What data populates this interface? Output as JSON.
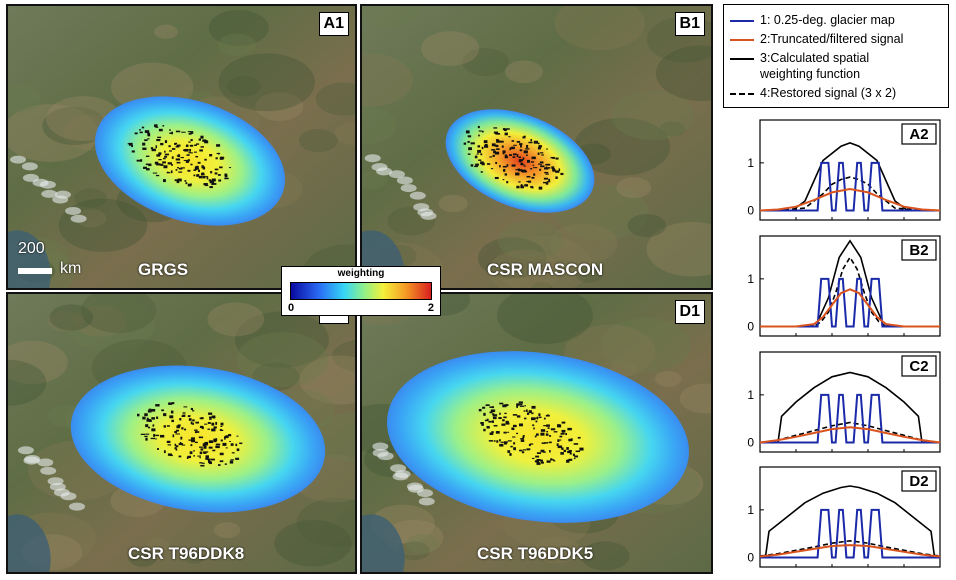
{
  "maps": [
    {
      "label": "A1",
      "title": "GRGS"
    },
    {
      "label": "B1",
      "title": "CSR MASCON"
    },
    {
      "label": "C1",
      "title": "CSR T96DDK8"
    },
    {
      "label": "D1",
      "title": "CSR T96DDK5"
    }
  ],
  "scale_bar": {
    "value": "200",
    "unit": "km"
  },
  "colorbar": {
    "title": "weighting",
    "min": "0",
    "max": "2",
    "colors": [
      "#0a0aa0",
      "#2a6bf5",
      "#36d6f5",
      "#8ef08a",
      "#f5f03a",
      "#f59a25",
      "#d81f1f"
    ]
  },
  "legend": {
    "items": [
      {
        "text": "1: 0.25-deg. glacier map",
        "color": "#1a2aa8",
        "style": "solid"
      },
      {
        "text": "2:Truncated/filtered signal",
        "color": "#d9531e",
        "style": "solid"
      },
      {
        "text": "3:Calculated spatial",
        "color": "#000000",
        "style": "solid"
      },
      {
        "text": "weighting function",
        "color": "#000000",
        "style": "none"
      },
      {
        "text": "4:Restored signal (3 x 2)",
        "color": "#000000",
        "style": "dashed"
      }
    ]
  },
  "chart_data": [
    {
      "type": "line",
      "label": "A2",
      "yticks": [
        "0",
        "1"
      ],
      "ylim": [
        -0.2,
        1.9
      ],
      "series": [
        {
          "name": "1: 0.25-deg. glacier map",
          "x": [
            0,
            0.32,
            0.34,
            0.38,
            0.4,
            0.42,
            0.44,
            0.46,
            0.48,
            0.52,
            0.54,
            0.56,
            0.58,
            0.6,
            0.62,
            0.66,
            0.68,
            1
          ],
          "y": [
            0,
            0,
            1,
            1,
            0,
            0,
            1,
            1,
            0,
            0,
            1,
            1,
            0,
            0,
            1,
            1,
            0,
            0
          ]
        },
        {
          "name": "2:Truncated/filtered signal",
          "x": [
            0,
            0.1,
            0.2,
            0.3,
            0.4,
            0.5,
            0.6,
            0.7,
            0.8,
            0.9,
            1
          ],
          "y": [
            0,
            0.02,
            0.08,
            0.22,
            0.38,
            0.45,
            0.38,
            0.22,
            0.08,
            0.02,
            0
          ]
        },
        {
          "name": "3:Calculated spatial weighting function",
          "x": [
            0,
            0.18,
            0.25,
            0.35,
            0.45,
            0.5,
            0.55,
            0.65,
            0.75,
            0.82,
            1
          ],
          "y": [
            0,
            0,
            0.2,
            1.05,
            1.35,
            1.42,
            1.35,
            1.05,
            0.2,
            0,
            0
          ]
        },
        {
          "name": "4:Restored signal (3 x 2)",
          "x": [
            0,
            0.15,
            0.25,
            0.3,
            0.35,
            0.4,
            0.45,
            0.5,
            0.55,
            0.6,
            0.65,
            0.7,
            0.75,
            0.85,
            1
          ],
          "y": [
            0,
            0.02,
            0.05,
            0.2,
            0.35,
            0.55,
            0.65,
            0.7,
            0.65,
            0.55,
            0.35,
            0.2,
            0.05,
            0.02,
            0
          ]
        }
      ]
    },
    {
      "type": "line",
      "label": "B2",
      "yticks": [
        "0",
        "1"
      ],
      "ylim": [
        -0.2,
        1.9
      ],
      "series": [
        {
          "name": "1: 0.25-deg. glacier map",
          "x": [
            0,
            0.32,
            0.34,
            0.38,
            0.4,
            0.42,
            0.44,
            0.46,
            0.48,
            0.52,
            0.54,
            0.56,
            0.58,
            0.6,
            0.62,
            0.66,
            0.68,
            1
          ],
          "y": [
            0,
            0,
            1,
            1,
            0,
            0,
            1,
            1,
            0,
            0,
            1,
            1,
            0,
            0,
            1,
            1,
            0,
            0
          ]
        },
        {
          "name": "2:Truncated/filtered signal",
          "x": [
            0,
            0.2,
            0.3,
            0.35,
            0.4,
            0.45,
            0.5,
            0.55,
            0.6,
            0.65,
            0.7,
            0.8,
            1
          ],
          "y": [
            0,
            0,
            0.05,
            0.2,
            0.45,
            0.7,
            0.78,
            0.7,
            0.45,
            0.2,
            0.05,
            0,
            0
          ]
        },
        {
          "name": "3:Calculated spatial weighting function",
          "x": [
            0,
            0.28,
            0.32,
            0.38,
            0.44,
            0.5,
            0.56,
            0.62,
            0.68,
            0.72,
            1
          ],
          "y": [
            0,
            0,
            0.1,
            0.6,
            1.45,
            1.8,
            1.45,
            0.6,
            0.1,
            0,
            0
          ]
        },
        {
          "name": "4:Restored signal (3 x 2)",
          "x": [
            0,
            0.3,
            0.34,
            0.38,
            0.42,
            0.46,
            0.5,
            0.54,
            0.58,
            0.62,
            0.66,
            0.7,
            1
          ],
          "y": [
            0,
            0,
            0.1,
            0.3,
            0.7,
            1.2,
            1.45,
            1.2,
            0.7,
            0.3,
            0.1,
            0,
            0
          ]
        }
      ]
    },
    {
      "type": "line",
      "label": "C2",
      "yticks": [
        "0",
        "1"
      ],
      "ylim": [
        -0.2,
        1.9
      ],
      "series": [
        {
          "name": "1: 0.25-deg. glacier map",
          "x": [
            0,
            0.32,
            0.34,
            0.38,
            0.4,
            0.42,
            0.44,
            0.46,
            0.48,
            0.52,
            0.54,
            0.56,
            0.58,
            0.6,
            0.62,
            0.66,
            0.68,
            1
          ],
          "y": [
            0,
            0,
            1,
            1,
            0,
            0,
            1,
            1,
            0,
            0,
            1,
            1,
            0,
            0,
            1,
            1,
            0,
            0
          ]
        },
        {
          "name": "2:Truncated/filtered signal",
          "x": [
            0,
            0.1,
            0.2,
            0.3,
            0.4,
            0.5,
            0.6,
            0.7,
            0.8,
            0.9,
            1
          ],
          "y": [
            0,
            0.05,
            0.12,
            0.2,
            0.28,
            0.32,
            0.28,
            0.2,
            0.12,
            0.05,
            0
          ]
        },
        {
          "name": "3:Calculated spatial weighting function",
          "x": [
            0,
            0.1,
            0.12,
            0.2,
            0.3,
            0.4,
            0.5,
            0.6,
            0.7,
            0.8,
            0.88,
            0.9,
            1
          ],
          "y": [
            0,
            0,
            0.55,
            0.85,
            1.15,
            1.38,
            1.47,
            1.38,
            1.15,
            0.85,
            0.55,
            0,
            0
          ]
        },
        {
          "name": "4:Restored signal (3 x 2)",
          "x": [
            0,
            0.1,
            0.2,
            0.3,
            0.4,
            0.5,
            0.6,
            0.7,
            0.8,
            0.9,
            1
          ],
          "y": [
            0,
            0.05,
            0.15,
            0.25,
            0.35,
            0.42,
            0.35,
            0.25,
            0.15,
            0.05,
            0
          ]
        }
      ]
    },
    {
      "type": "line",
      "label": "D2",
      "yticks": [
        "0",
        "1"
      ],
      "ylim": [
        -0.2,
        1.9
      ],
      "series": [
        {
          "name": "1: 0.25-deg. glacier map",
          "x": [
            0,
            0.32,
            0.34,
            0.38,
            0.4,
            0.42,
            0.44,
            0.46,
            0.48,
            0.52,
            0.54,
            0.56,
            0.58,
            0.6,
            0.62,
            0.66,
            0.68,
            1
          ],
          "y": [
            0,
            0,
            1,
            1,
            0,
            0,
            1,
            1,
            0,
            0,
            1,
            1,
            0,
            0,
            1,
            1,
            0,
            0
          ]
        },
        {
          "name": "2:Truncated/filtered signal",
          "x": [
            0,
            0.1,
            0.2,
            0.3,
            0.4,
            0.5,
            0.6,
            0.7,
            0.8,
            0.9,
            1
          ],
          "y": [
            0.02,
            0.06,
            0.12,
            0.18,
            0.24,
            0.26,
            0.24,
            0.18,
            0.12,
            0.06,
            0.02
          ]
        },
        {
          "name": "3:Calculated spatial weighting function",
          "x": [
            0,
            0.03,
            0.05,
            0.15,
            0.25,
            0.35,
            0.45,
            0.5,
            0.55,
            0.65,
            0.75,
            0.85,
            0.95,
            0.97,
            1
          ],
          "y": [
            0,
            0,
            0.55,
            0.85,
            1.15,
            1.35,
            1.47,
            1.5,
            1.47,
            1.35,
            1.15,
            0.85,
            0.55,
            0,
            0
          ]
        },
        {
          "name": "4:Restored signal (3 x 2)",
          "x": [
            0,
            0.1,
            0.2,
            0.3,
            0.4,
            0.5,
            0.6,
            0.7,
            0.8,
            0.9,
            1
          ],
          "y": [
            0.03,
            0.08,
            0.15,
            0.22,
            0.3,
            0.35,
            0.3,
            0.22,
            0.15,
            0.08,
            0.03
          ]
        }
      ]
    }
  ]
}
